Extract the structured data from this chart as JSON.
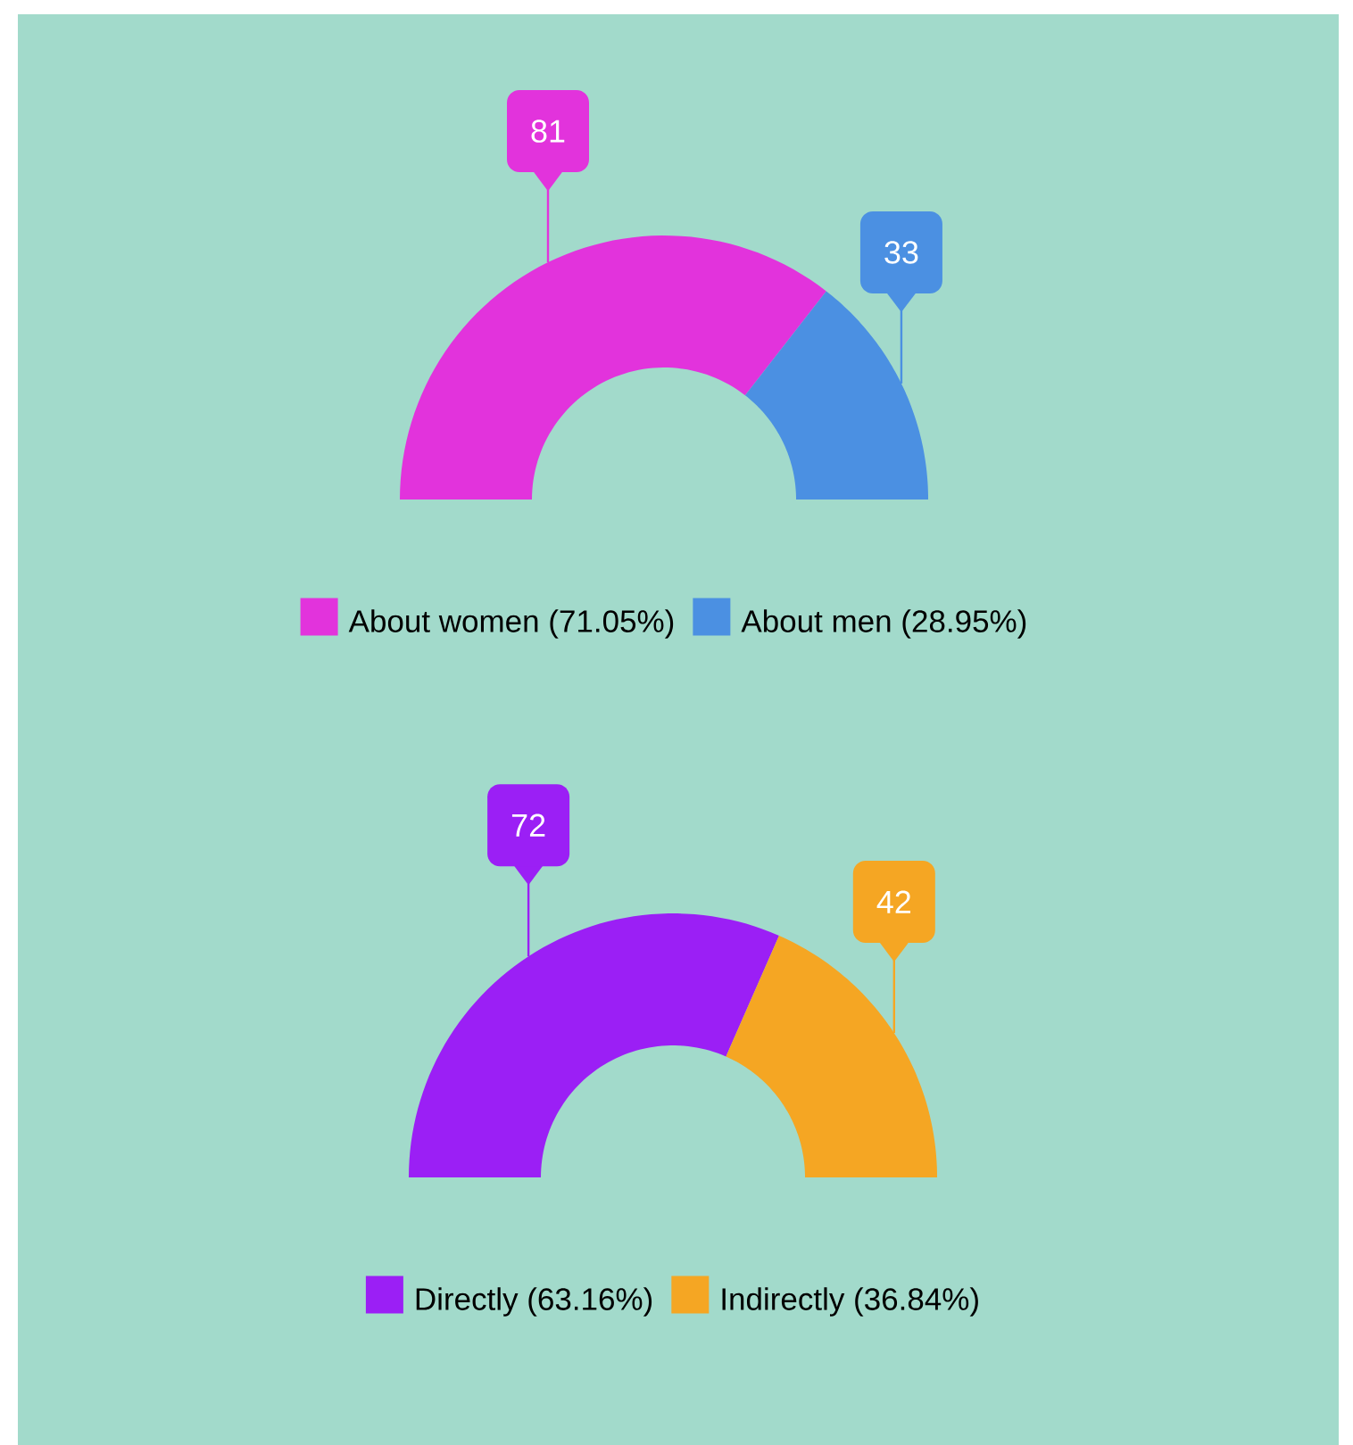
{
  "chart_data": [
    {
      "type": "donut",
      "categories": [
        "About women (71.05%)",
        "About men (28.95%)"
      ],
      "values": [
        81,
        33
      ],
      "colors": [
        "#e233dc",
        "#4b90e2"
      ],
      "data_labels": true,
      "legend": "bottom"
    },
    {
      "type": "donut",
      "categories": [
        "Directly (63.16%)",
        "Indirectly (36.84%)"
      ],
      "values": [
        72,
        42
      ],
      "colors": [
        "#9b1ff5",
        "#f5a623"
      ],
      "data_labels": true,
      "legend": "bottom"
    }
  ]
}
